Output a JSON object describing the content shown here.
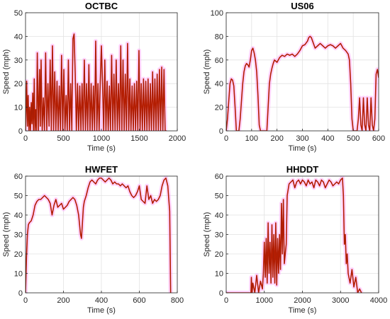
{
  "chart_data": [
    {
      "type": "line",
      "title": "OCTBC",
      "xlabel": "Time (s)",
      "ylabel": "Speed (mph)",
      "xlim": [
        0,
        2000
      ],
      "ylim": [
        0,
        50
      ],
      "xticks": [
        0,
        500,
        1000,
        1500,
        2000
      ],
      "yticks": [
        0,
        10,
        20,
        30,
        40,
        50
      ],
      "grid": true,
      "colors": {
        "primary": "#cc2200",
        "secondary": "#8b1a0a",
        "halo": "#ff80ff"
      },
      "series": [
        {
          "x": [
            0,
            15,
            25,
            35,
            45,
            55,
            65,
            75,
            85,
            95,
            105,
            115,
            125,
            135,
            145,
            155,
            170,
            185,
            195,
            205,
            220,
            235,
            250,
            265,
            280,
            295,
            310,
            325,
            340,
            355,
            370,
            385,
            400,
            415,
            430,
            445,
            460,
            475,
            490,
            505,
            520,
            535,
            550,
            565,
            580,
            595,
            610,
            625,
            640,
            655,
            670,
            685,
            700,
            715,
            730,
            745,
            760,
            775,
            790,
            805,
            820,
            835,
            850,
            865,
            880,
            895,
            910,
            925,
            940,
            955,
            970,
            985,
            1000,
            1015,
            1030,
            1045,
            1060,
            1075,
            1090,
            1105,
            1120,
            1135,
            1150,
            1165,
            1180,
            1195,
            1210,
            1225,
            1240,
            1255,
            1270,
            1285,
            1300,
            1315,
            1330,
            1345,
            1360,
            1375,
            1390,
            1405,
            1420,
            1435,
            1450,
            1465,
            1480,
            1495,
            1510,
            1525,
            1540,
            1555,
            1570,
            1585,
            1600,
            1615,
            1630,
            1645,
            1660,
            1675,
            1690,
            1705,
            1720,
            1735,
            1750,
            1765,
            1780,
            1795,
            1810,
            1825,
            1840,
            1860
          ],
          "y": [
            0,
            21,
            2,
            15,
            0,
            10,
            0,
            12,
            3,
            16,
            0,
            22,
            0,
            9,
            0,
            33,
            0,
            26,
            2,
            30,
            0,
            14,
            0,
            33,
            0,
            20,
            2,
            30,
            0,
            36,
            0,
            25,
            0,
            21,
            0,
            19,
            0,
            32,
            0,
            26,
            0,
            15,
            0,
            30,
            0,
            20,
            0,
            39,
            41,
            24,
            0,
            20,
            0,
            19,
            0,
            20,
            0,
            30,
            0,
            20,
            0,
            28,
            0,
            20,
            0,
            19,
            0,
            38,
            0,
            20,
            0,
            21,
            36,
            20,
            0,
            30,
            0,
            21,
            0,
            19,
            0,
            32,
            0,
            24,
            0,
            30,
            0,
            20,
            0,
            36,
            0,
            30,
            0,
            24,
            0,
            37,
            0,
            22,
            0,
            19,
            0,
            20,
            0,
            21,
            0,
            34,
            0,
            20,
            0,
            22,
            0,
            21,
            0,
            22,
            0,
            20,
            0,
            25,
            0,
            22,
            0,
            24,
            0,
            26,
            0,
            27,
            0,
            26,
            0,
            0
          ]
        }
      ]
    },
    {
      "type": "line",
      "title": "US06",
      "xlabel": "Time (s)",
      "ylabel": "Speed (mph)",
      "xlim": [
        0,
        600
      ],
      "ylim": [
        0,
        100
      ],
      "xticks": [
        0,
        100,
        200,
        300,
        400,
        500,
        600
      ],
      "yticks": [
        0,
        20,
        40,
        60,
        80,
        100
      ],
      "grid": true,
      "colors": {
        "primary": "#cc2200",
        "secondary": "#8b1a0a",
        "halo": "#ff80ff"
      },
      "series": [
        {
          "x": [
            0,
            5,
            10,
            15,
            20,
            25,
            30,
            35,
            40,
            45,
            50,
            55,
            60,
            65,
            70,
            75,
            80,
            85,
            90,
            95,
            100,
            105,
            110,
            115,
            120,
            125,
            130,
            135,
            140,
            145,
            150,
            155,
            160,
            165,
            170,
            175,
            180,
            185,
            190,
            200,
            210,
            220,
            230,
            240,
            250,
            260,
            270,
            280,
            290,
            300,
            310,
            320,
            325,
            330,
            335,
            340,
            345,
            350,
            360,
            370,
            380,
            390,
            400,
            410,
            420,
            430,
            440,
            450,
            460,
            470,
            480,
            485,
            490,
            495,
            500,
            505,
            510,
            515,
            520,
            525,
            530,
            535,
            540,
            545,
            550,
            555,
            560,
            565,
            570,
            575,
            580,
            585,
            590,
            595,
            600
          ],
          "y": [
            0,
            10,
            25,
            40,
            44,
            43,
            38,
            20,
            0,
            0,
            0,
            10,
            25,
            40,
            50,
            55,
            57,
            56,
            54,
            60,
            68,
            70,
            66,
            60,
            50,
            30,
            5,
            0,
            0,
            0,
            0,
            0,
            0,
            20,
            40,
            48,
            53,
            57,
            60,
            58,
            62,
            64,
            63,
            65,
            64,
            65,
            63,
            65,
            68,
            72,
            73,
            76,
            79,
            80,
            79,
            76,
            73,
            70,
            72,
            74,
            72,
            70,
            72,
            73,
            72,
            70,
            72,
            74,
            70,
            68,
            65,
            60,
            40,
            10,
            0,
            0,
            0,
            0,
            10,
            28,
            5,
            0,
            28,
            5,
            0,
            28,
            5,
            0,
            28,
            5,
            0,
            10,
            48,
            52,
            45
          ]
        }
      ]
    },
    {
      "type": "line",
      "title": "HWFET",
      "xlabel": "Time (s)",
      "ylabel": "Speed (mph)",
      "xlim": [
        0,
        800
      ],
      "ylim": [
        0,
        60
      ],
      "xticks": [
        0,
        200,
        400,
        600,
        800
      ],
      "yticks": [
        0,
        10,
        20,
        30,
        40,
        50,
        60
      ],
      "grid": true,
      "colors": {
        "primary": "#cc2200",
        "secondary": "#8b1a0a",
        "halo": "#ff80ff"
      },
      "series": [
        {
          "x": [
            0,
            5,
            10,
            15,
            20,
            30,
            40,
            50,
            60,
            70,
            80,
            90,
            100,
            110,
            120,
            130,
            140,
            150,
            160,
            170,
            180,
            190,
            200,
            210,
            220,
            230,
            240,
            250,
            260,
            270,
            280,
            285,
            290,
            295,
            300,
            305,
            310,
            320,
            330,
            340,
            350,
            360,
            370,
            380,
            390,
            400,
            410,
            420,
            430,
            440,
            450,
            460,
            470,
            480,
            490,
            500,
            510,
            520,
            530,
            540,
            550,
            560,
            570,
            580,
            590,
            600,
            610,
            620,
            630,
            640,
            650,
            660,
            670,
            680,
            690,
            700,
            710,
            720,
            730,
            740,
            750,
            760,
            765
          ],
          "y": [
            0,
            18,
            30,
            35,
            36,
            37,
            40,
            45,
            47,
            48,
            48,
            49,
            50,
            49,
            48,
            46,
            40,
            45,
            48,
            44,
            45,
            46,
            43,
            44,
            45,
            47,
            48,
            49,
            48,
            45,
            40,
            35,
            30,
            28,
            36,
            44,
            47,
            50,
            54,
            57,
            58,
            57,
            56,
            58,
            59,
            59,
            58,
            57,
            58,
            59,
            58,
            56,
            57,
            56,
            56,
            55,
            56,
            55,
            54,
            55,
            52,
            50,
            49,
            50,
            52,
            55,
            48,
            47,
            46,
            55,
            48,
            50,
            46,
            48,
            47,
            48,
            50,
            55,
            58,
            59,
            55,
            42,
            0
          ]
        }
      ]
    },
    {
      "type": "line",
      "title": "HHDDT",
      "xlabel": "Time (s)",
      "ylabel": "Speed (mph)",
      "xlim": [
        0,
        4000
      ],
      "ylim": [
        0,
        60
      ],
      "xticks": [
        0,
        1000,
        2000,
        3000,
        4000
      ],
      "yticks": [
        0,
        10,
        20,
        30,
        40,
        50,
        60
      ],
      "grid": true,
      "colors": {
        "primary": "#cc2200",
        "secondary": "#8b1a0a",
        "halo": "#ff80ff"
      },
      "series": [
        {
          "x": [
            0,
            650,
            660,
            680,
            700,
            750,
            800,
            850,
            900,
            950,
            975,
            1000,
            1025,
            1050,
            1075,
            1100,
            1125,
            1150,
            1175,
            1200,
            1225,
            1250,
            1275,
            1300,
            1325,
            1350,
            1375,
            1400,
            1425,
            1450,
            1475,
            1500,
            1525,
            1550,
            1575,
            1600,
            1650,
            1700,
            1750,
            1800,
            1850,
            1900,
            1950,
            2000,
            2050,
            2100,
            2150,
            2200,
            2250,
            2300,
            2350,
            2400,
            2450,
            2500,
            2550,
            2600,
            2650,
            2700,
            2750,
            2800,
            2850,
            2900,
            2950,
            3000,
            3050,
            3075,
            3100,
            3125,
            3150,
            3175,
            3200,
            3250,
            3300,
            3350,
            3400,
            3450,
            3500,
            3550
          ],
          "y": [
            0,
            0,
            8,
            0,
            5,
            0,
            9,
            0,
            6,
            2,
            10,
            26,
            8,
            28,
            5,
            36,
            10,
            26,
            5,
            35,
            8,
            30,
            5,
            36,
            4,
            28,
            10,
            30,
            12,
            46,
            20,
            48,
            15,
            20,
            25,
            50,
            56,
            57,
            58,
            54,
            57,
            58,
            56,
            58,
            57,
            55,
            58,
            56,
            57,
            54,
            58,
            57,
            55,
            58,
            57,
            54,
            56,
            58,
            57,
            55,
            56,
            57,
            56,
            58,
            59,
            50,
            25,
            30,
            15,
            20,
            10,
            5,
            12,
            3,
            8,
            0,
            2,
            0
          ]
        }
      ]
    }
  ]
}
